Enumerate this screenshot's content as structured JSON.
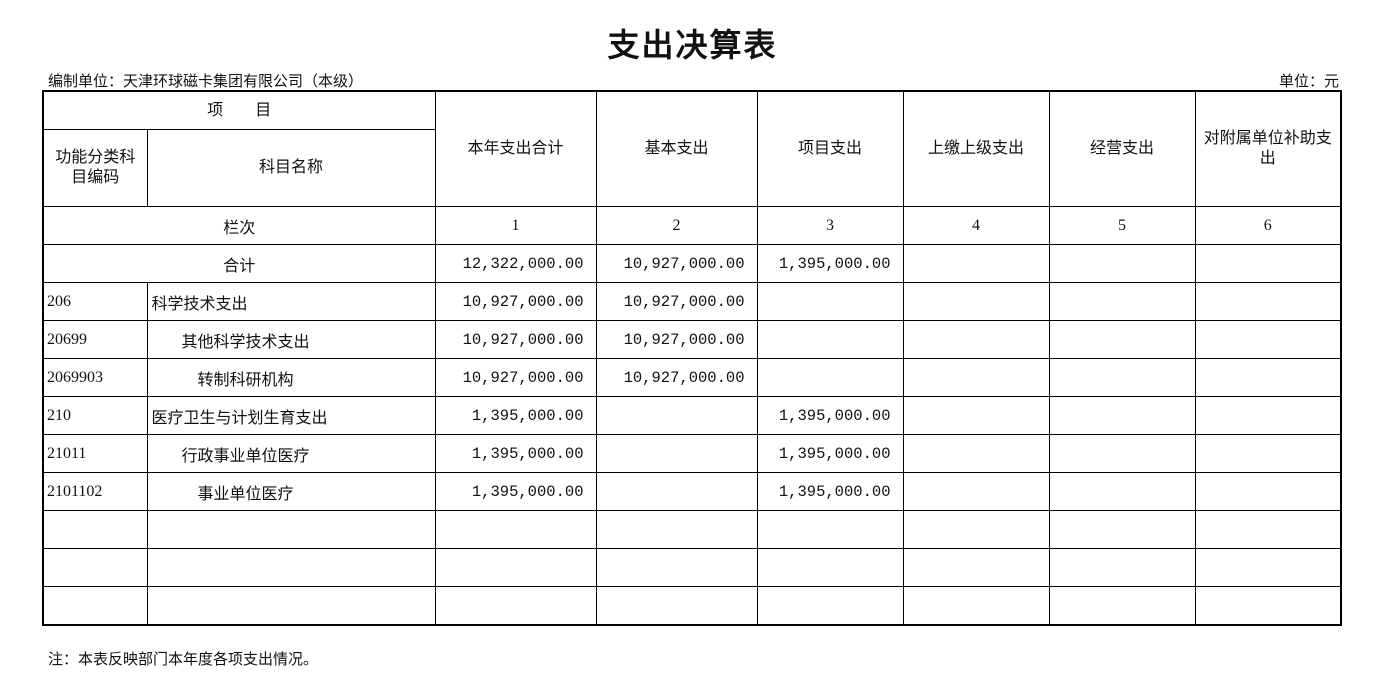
{
  "title": "支出决算表",
  "compiler": "编制单位：天津环球磁卡集团有限公司（本级）",
  "unit": "单位：元",
  "header": {
    "item": "项　　目",
    "code": "功能分类科目编码",
    "name": "科目名称",
    "columns": [
      "本年支出合计",
      "基本支出",
      "项目支出",
      "上缴上级支出",
      "经营支出",
      "对附属单位补助支出"
    ],
    "serial_label": "栏次",
    "serials": [
      "1",
      "2",
      "3",
      "4",
      "5",
      "6"
    ]
  },
  "total": {
    "label": "合计",
    "values": [
      "12,322,000.00",
      "10,927,000.00",
      "1,395,000.00",
      "",
      "",
      ""
    ]
  },
  "rows": [
    {
      "code": "206",
      "name": "科学技术支出",
      "level": 1,
      "values": [
        "10,927,000.00",
        "10,927,000.00",
        "",
        "",
        "",
        ""
      ]
    },
    {
      "code": "20699",
      "name": "其他科学技术支出",
      "level": 2,
      "values": [
        "10,927,000.00",
        "10,927,000.00",
        "",
        "",
        "",
        ""
      ]
    },
    {
      "code": "2069903",
      "name": "转制科研机构",
      "level": 3,
      "values": [
        "10,927,000.00",
        "10,927,000.00",
        "",
        "",
        "",
        ""
      ]
    },
    {
      "code": "210",
      "name": "医疗卫生与计划生育支出",
      "level": 1,
      "values": [
        "1,395,000.00",
        "",
        "1,395,000.00",
        "",
        "",
        ""
      ]
    },
    {
      "code": "21011",
      "name": "行政事业单位医疗",
      "level": 2,
      "values": [
        "1,395,000.00",
        "",
        "1,395,000.00",
        "",
        "",
        ""
      ]
    },
    {
      "code": "2101102",
      "name": "事业单位医疗",
      "level": 3,
      "values": [
        "1,395,000.00",
        "",
        "1,395,000.00",
        "",
        "",
        ""
      ]
    },
    {
      "code": "",
      "name": "",
      "level": 1,
      "values": [
        "",
        "",
        "",
        "",
        "",
        ""
      ]
    },
    {
      "code": "",
      "name": "",
      "level": 1,
      "values": [
        "",
        "",
        "",
        "",
        "",
        ""
      ]
    },
    {
      "code": "",
      "name": "",
      "level": 1,
      "values": [
        "",
        "",
        "",
        "",
        "",
        ""
      ]
    }
  ],
  "note": "注：本表反映部门本年度各项支出情况。"
}
